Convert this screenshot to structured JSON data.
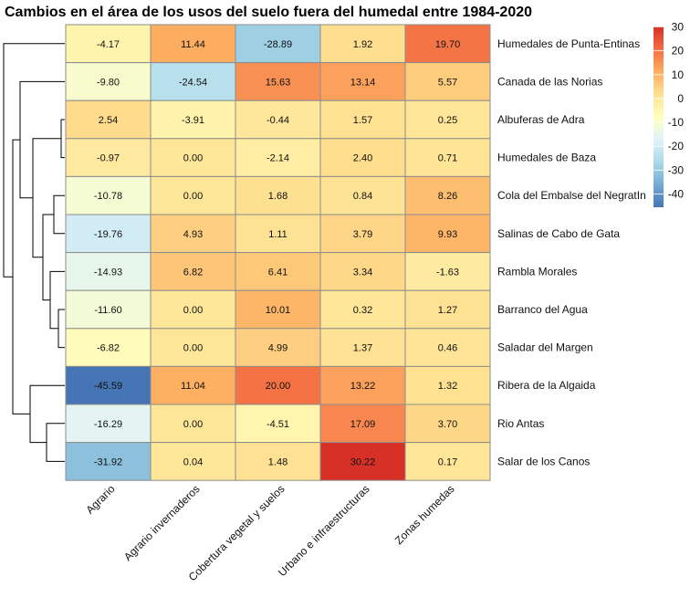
{
  "chart_data": {
    "type": "heatmap",
    "title": "Cambios en el área de los usos del suelo fuera del humedal entre 1984-2020",
    "columns": [
      "Agrario",
      "Agrario invernaderos",
      "Cobertura vegetal y suelos",
      "Urbano e infraestructuras",
      "Zonas humedas"
    ],
    "rows": [
      "Humedales de Punta-Entinas",
      "Canada de las Norias",
      "Albuferas de Adra",
      "Humedales de Baza",
      "Cola del Embalse del NegratIn",
      "Salinas de Cabo de Gata",
      "Rambla Morales",
      "Barranco del Agua",
      "Saladar del Margen",
      "Ribera de la Algaida",
      "Rio Antas",
      "Salar de los Canos"
    ],
    "values": [
      [
        -4.17,
        11.44,
        -28.89,
        1.92,
        19.7
      ],
      [
        -9.8,
        -24.54,
        15.63,
        13.14,
        5.57
      ],
      [
        2.54,
        -3.91,
        -0.44,
        1.57,
        0.25
      ],
      [
        -0.97,
        0.0,
        -2.14,
        2.4,
        0.71
      ],
      [
        -10.78,
        0.0,
        1.68,
        0.84,
        8.26
      ],
      [
        -19.76,
        4.93,
        1.11,
        3.79,
        9.93
      ],
      [
        -14.93,
        6.82,
        6.41,
        3.34,
        -1.63
      ],
      [
        -11.6,
        0.0,
        10.01,
        0.32,
        1.27
      ],
      [
        -6.82,
        0.0,
        4.99,
        1.37,
        0.46
      ],
      [
        -45.59,
        11.04,
        20.0,
        13.22,
        1.32
      ],
      [
        -16.29,
        0.0,
        -4.51,
        17.09,
        3.7
      ],
      [
        -31.92,
        0.04,
        1.48,
        30.22,
        0.17
      ]
    ],
    "legend": {
      "ticks": [
        30,
        20,
        10,
        0,
        -10,
        -20,
        -30,
        -40
      ],
      "range": [
        -45.59,
        30.22
      ],
      "colors": [
        "#4575b4",
        "#74add1",
        "#abd9e9",
        "#e0f3f8",
        "#ffffbf",
        "#fee090",
        "#fdae61",
        "#f46d43",
        "#d73027"
      ],
      "placement": "right"
    },
    "dendrogram": "rows"
  }
}
